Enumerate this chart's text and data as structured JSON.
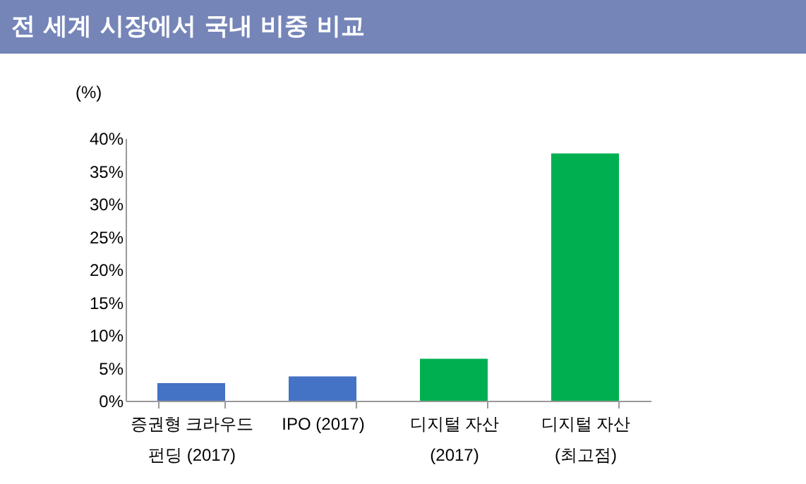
{
  "chart_data": {
    "type": "bar",
    "title": "전 세계 시장에서 국내 비중 비교",
    "ylabel": "(%)",
    "categories": [
      "증권형 크라우드\n펀딩 (2017)",
      "IPO (2017)",
      "디지털 자산\n(2017)",
      "디지털 자산\n(최고점)"
    ],
    "values": [
      2.7,
      3.7,
      6.4,
      37.7
    ],
    "colors": [
      "#4472c4",
      "#4472c4",
      "#00b050",
      "#00b050"
    ],
    "ylim": [
      0,
      40
    ],
    "yticks": [
      {
        "value": 0,
        "label": "0%"
      },
      {
        "value": 5,
        "label": "5%"
      },
      {
        "value": 10,
        "label": "10%"
      },
      {
        "value": 15,
        "label": "15%"
      },
      {
        "value": 20,
        "label": "20%"
      },
      {
        "value": 25,
        "label": "25%"
      },
      {
        "value": 30,
        "label": "30%"
      },
      {
        "value": 35,
        "label": "35%"
      },
      {
        "value": 40,
        "label": "40%"
      }
    ],
    "grid": false,
    "legend": false
  }
}
